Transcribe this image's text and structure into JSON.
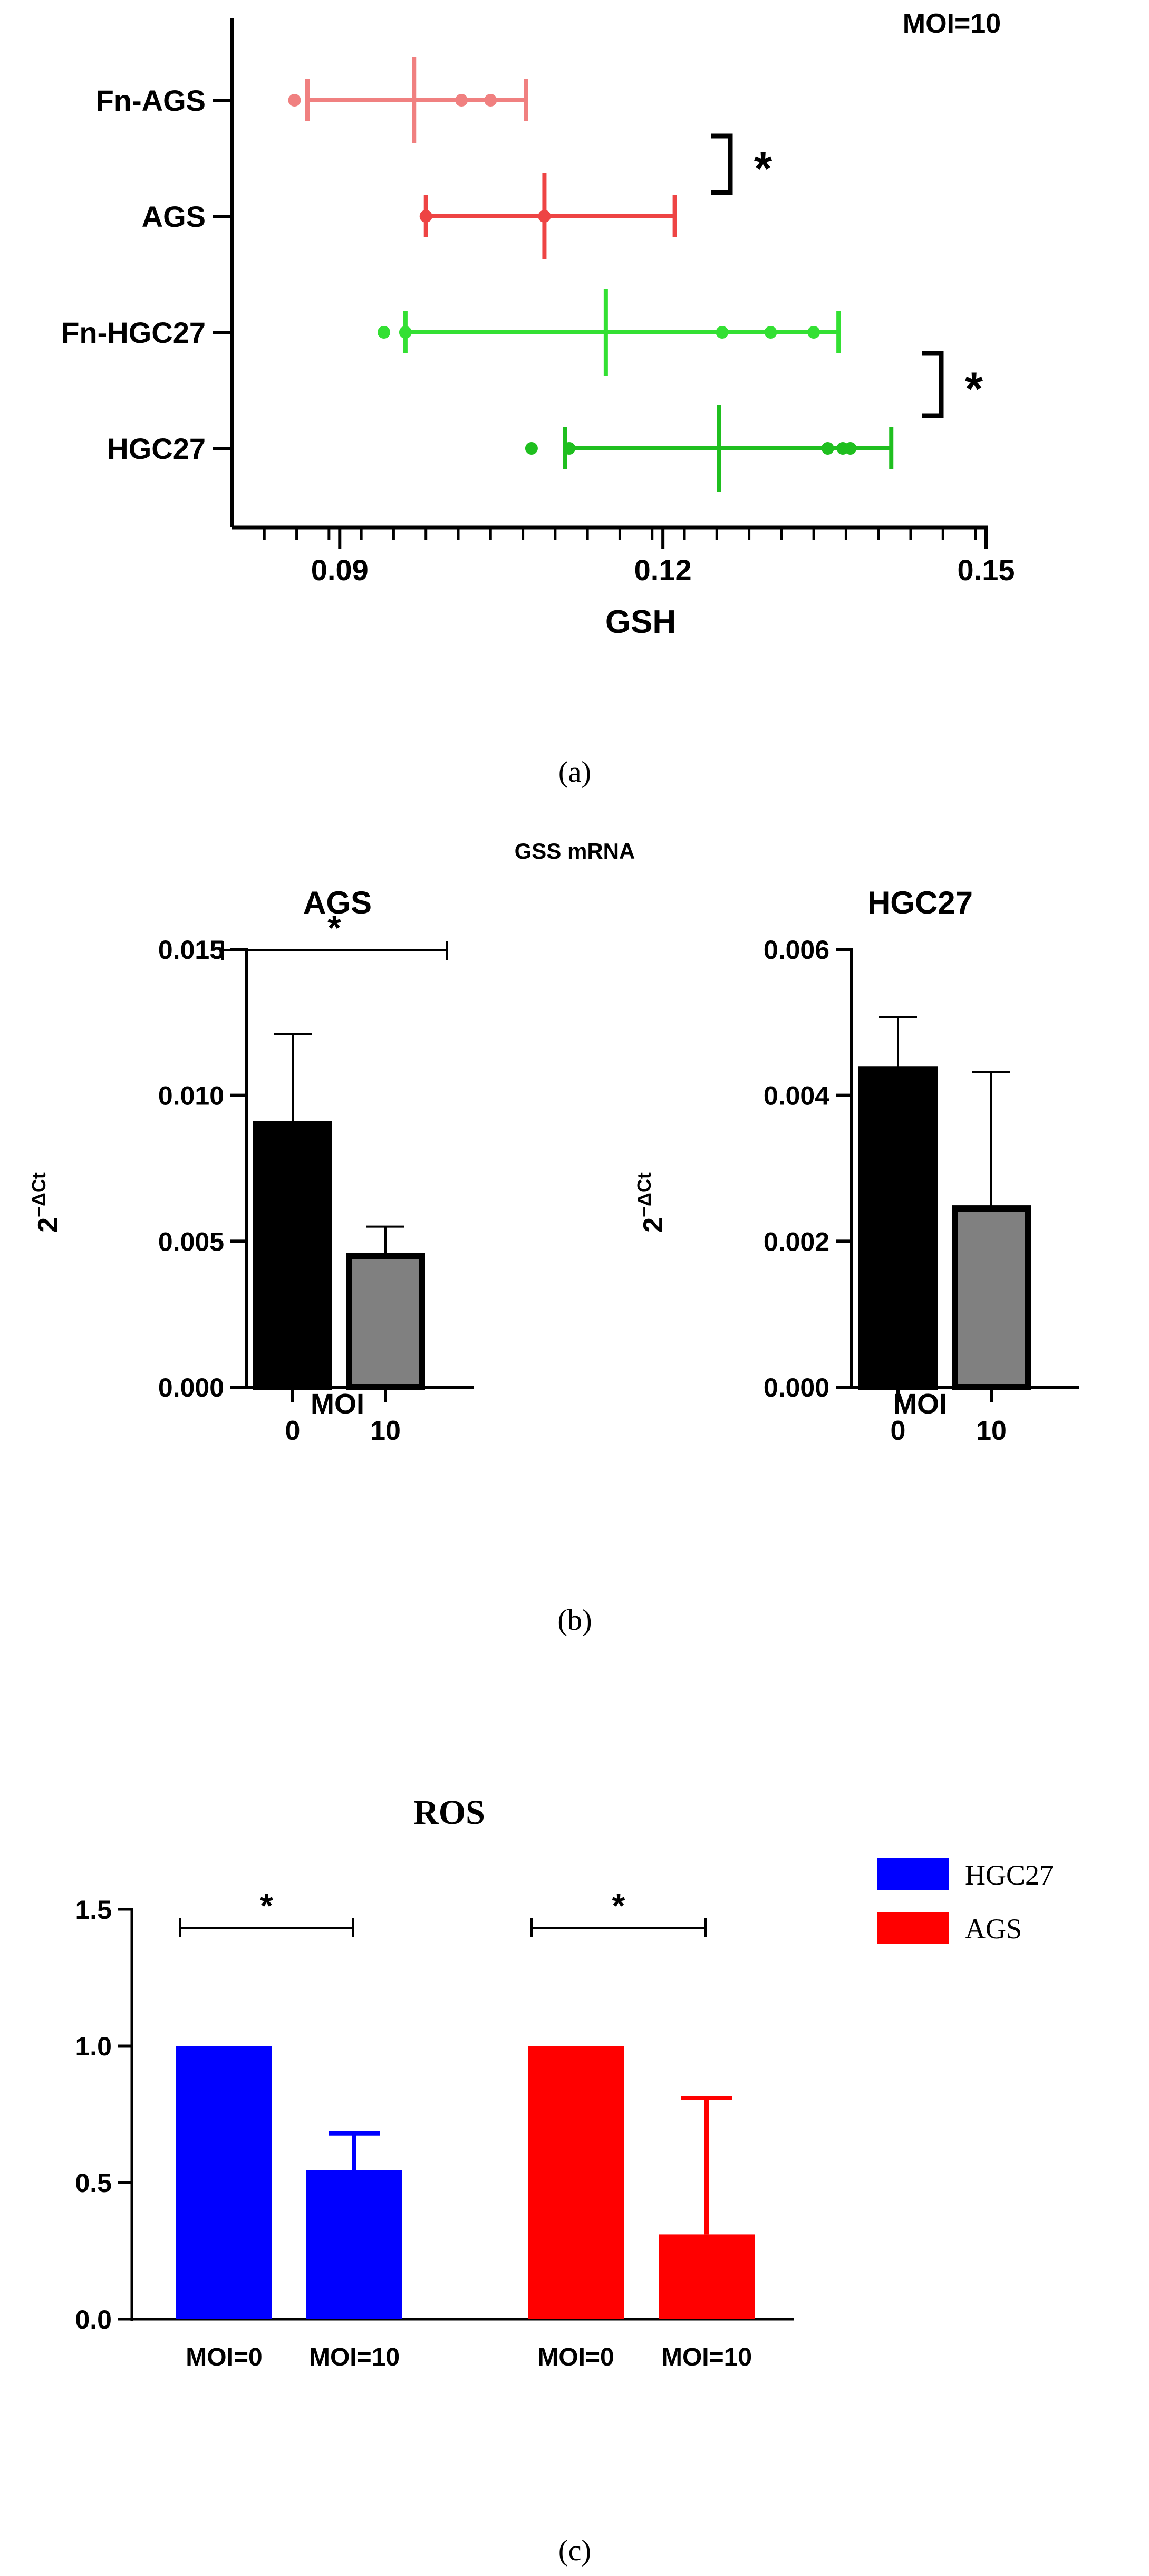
{
  "panels": {
    "a": {
      "caption": "(a)"
    },
    "b": {
      "caption": "(b)",
      "suptitle": "GSS mRNA"
    },
    "c": {
      "caption": "(c)"
    }
  },
  "chart_data": [
    {
      "id": "a",
      "type": "scatter",
      "orientation": "horizontal",
      "annotation": "MOI=10",
      "xlabel": "GSH",
      "xlim": [
        0.08,
        0.15
      ],
      "xticks": [
        0.09,
        0.12,
        0.15
      ],
      "xtick_labels": [
        "0.09",
        "0.12",
        "0.15"
      ],
      "categories": [
        "Fn-AGS",
        "AGS",
        "Fn-HGC27",
        "HGC27"
      ],
      "series": [
        {
          "name": "Fn-AGS",
          "color": "#F08080",
          "mean": 0.0969,
          "lower": 0.087,
          "upper": 0.1073,
          "points": [
            0.0858,
            0.1013,
            0.104
          ]
        },
        {
          "name": "AGS",
          "color": "#EE4444",
          "mean": 0.109,
          "lower": 0.098,
          "upper": 0.1211,
          "points": [
            0.098,
            0.109
          ]
        },
        {
          "name": "Fn-HGC27",
          "color": "#33E033",
          "mean": 0.1147,
          "lower": 0.0961,
          "upper": 0.1363,
          "points": [
            0.0941,
            0.0961,
            0.1255,
            0.13,
            0.134
          ]
        },
        {
          "name": "HGC27",
          "color": "#1FBF1F",
          "mean": 0.1252,
          "lower": 0.1109,
          "upper": 0.1412,
          "points": [
            0.1078,
            0.1113,
            0.1353,
            0.1367,
            0.1374
          ]
        }
      ],
      "significance": [
        {
          "between": [
            "Fn-AGS",
            "AGS"
          ],
          "label": "*"
        },
        {
          "between": [
            "Fn-HGC27",
            "HGC27"
          ],
          "label": "*"
        }
      ]
    },
    {
      "id": "b1",
      "type": "bar",
      "title": "AGS",
      "xlabel": "MOI",
      "ylabel_base": "2",
      "ylabel_sup": "−ΔCt",
      "ylim": [
        0,
        0.015
      ],
      "yticks": [
        "0.000",
        "0.005",
        "0.010",
        "0.015"
      ],
      "categories": [
        "0",
        "10"
      ],
      "values": [
        0.009,
        0.0045
      ],
      "errors": [
        0.0031,
        0.001
      ],
      "colors": [
        "#000000",
        "#808080"
      ],
      "significance": {
        "label": "*"
      }
    },
    {
      "id": "b2",
      "type": "bar",
      "title": "HGC27",
      "xlabel": "MOI",
      "ylabel_base": "2",
      "ylabel_sup": "−ΔCt",
      "ylim": [
        0,
        0.006
      ],
      "yticks": [
        "0.000",
        "0.002",
        "0.004",
        "0.006"
      ],
      "categories": [
        "0",
        "10"
      ],
      "values": [
        0.00435,
        0.00245
      ],
      "errors": [
        0.00072,
        0.00187
      ],
      "colors": [
        "#000000",
        "#808080"
      ]
    },
    {
      "id": "c",
      "type": "bar",
      "title": "ROS",
      "ylim": [
        0,
        1.5
      ],
      "yticks": [
        "0.0",
        "0.5",
        "1.0",
        "1.5"
      ],
      "categories": [
        "MOI=0",
        "MOI=10",
        "MOI=0",
        "MOI=10"
      ],
      "groups": [
        "HGC27",
        "HGC27",
        "AGS",
        "AGS"
      ],
      "values": [
        1.0,
        0.545,
        1.0,
        0.31
      ],
      "errors": [
        0,
        0.135,
        0,
        0.5
      ],
      "legend": [
        {
          "label": "HGC27",
          "color": "#0000FF"
        },
        {
          "label": "AGS",
          "color": "#FF0000"
        }
      ],
      "legend_position": "right",
      "significance": [
        {
          "group": "HGC27",
          "label": "*"
        },
        {
          "group": "AGS",
          "label": "*"
        }
      ]
    }
  ]
}
